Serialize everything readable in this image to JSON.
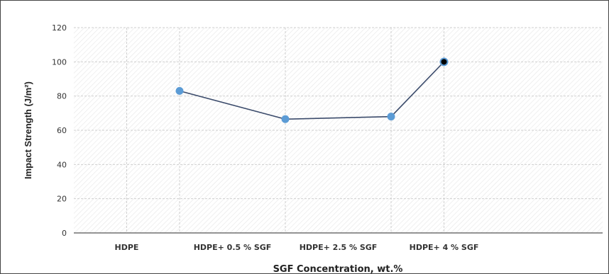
{
  "chart_data": {
    "type": "line",
    "categories": [
      "HDPE",
      "HDPE+ 0.5 % SGF",
      "HDPE+ 2.5 % SGF",
      "HDPE+ 4 % SGF"
    ],
    "point_x": [
      0.5,
      1.0,
      2.0,
      3.0,
      3.5
    ],
    "values": [
      83,
      66.5,
      68,
      100
    ],
    "value_x": [
      1.0,
      2.0,
      3.0,
      3.5
    ],
    "last_point_color": "#000000",
    "ylim": [
      0,
      120
    ],
    "yticks": [
      "0",
      "20",
      "40",
      "60",
      "80",
      "100",
      "120"
    ],
    "xlabel": "SGF Concentration, wt.%",
    "ylabel": "Impact Strength (J/m²)",
    "grid": true,
    "colors": {
      "line": "#3b4b6b",
      "marker": "#5b9bd5",
      "grid": "#cfcfcf",
      "plot_bg_hatch": "#e4e4e4"
    }
  }
}
